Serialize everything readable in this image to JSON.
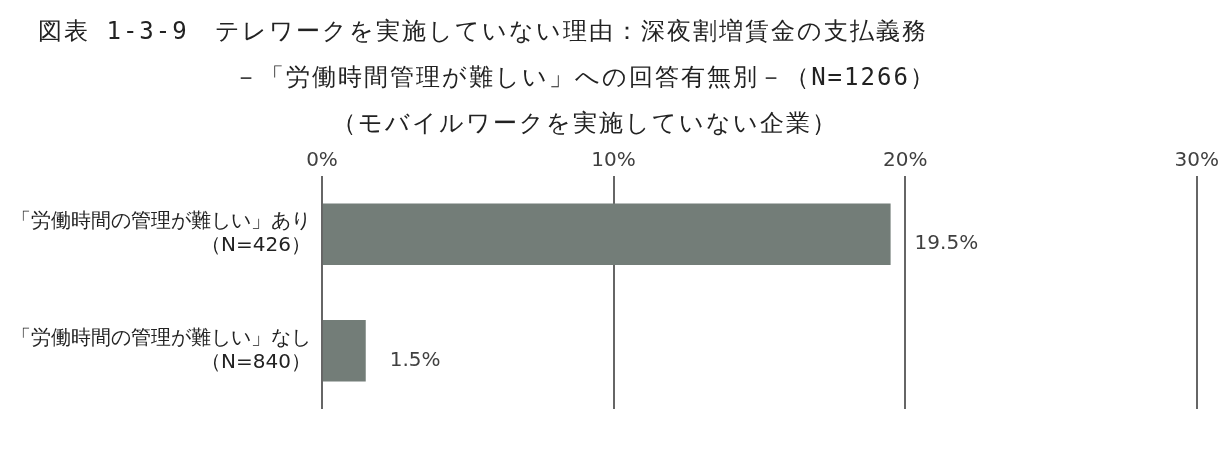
{
  "chart_data": {
    "type": "bar",
    "orientation": "horizontal",
    "title": "図表 1-3-9　テレワークを実施していない理由：深夜割増賃金の支払義務",
    "subtitle": "－「労働時間管理が難しい」への回答有無別－（N=1266）",
    "annotations": [
      "（モバイルワークを実施していない企業）"
    ],
    "categories": [
      "「労働時間の管理が難しい」あり（N=426）",
      "「労働時間の管理が難しい」なし（N=840）"
    ],
    "values": [
      19.5,
      1.5
    ],
    "color": "#737d78",
    "value_labels": [
      "19.5%",
      "1.5%"
    ],
    "xlim": [
      0,
      30
    ],
    "xticks": [
      {
        "value": 0,
        "label": "0%"
      },
      {
        "value": 10,
        "label": "10%"
      },
      {
        "value": 20,
        "label": "20%"
      },
      {
        "value": 30,
        "label": "30%"
      }
    ],
    "grid": "x",
    "legend": false
  }
}
